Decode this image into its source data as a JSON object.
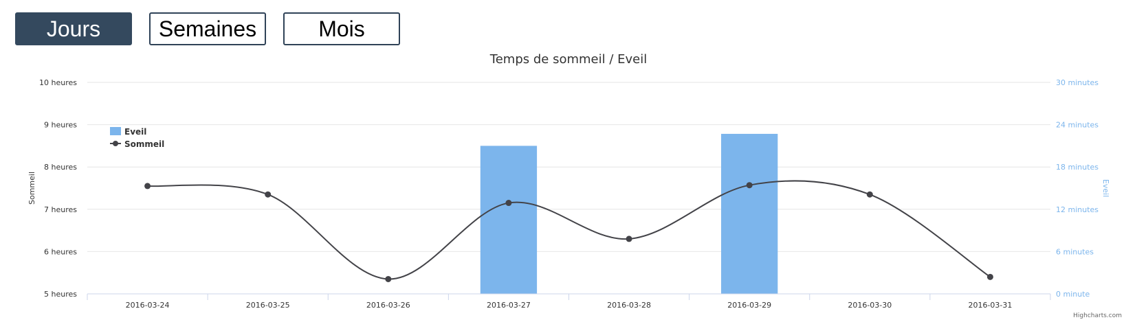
{
  "toolbar": {
    "buttons": [
      {
        "label": "Jours",
        "active": true
      },
      {
        "label": "Semaines",
        "active": false
      },
      {
        "label": "Mois",
        "active": false
      }
    ]
  },
  "chart_data": {
    "type": "bar+line",
    "title": "Temps de sommeil / Eveil",
    "categories": [
      "2016-03-24",
      "2016-03-25",
      "2016-03-26",
      "2016-03-27",
      "2016-03-28",
      "2016-03-29",
      "2016-03-30",
      "2016-03-31"
    ],
    "y_left": {
      "label": "Sommeil",
      "min": 5,
      "max": 10,
      "ticks": [
        5,
        6,
        7,
        8,
        9,
        10
      ],
      "tick_labels": [
        "5 heures",
        "6 heures",
        "7 heures",
        "8 heures",
        "9 heures",
        "10 heures"
      ],
      "color": "#333333"
    },
    "y_right": {
      "label": "Eveil",
      "min": 0,
      "max": 30,
      "ticks": [
        0,
        6,
        12,
        18,
        24,
        30
      ],
      "tick_labels": [
        "0 minute",
        "6 minutes",
        "12 minutes",
        "18 minutes",
        "24 minutes",
        "30 minutes"
      ],
      "color": "#7cb5ec"
    },
    "series": [
      {
        "name": "Eveil",
        "type": "column",
        "axis": "right",
        "color": "#7cb5ec",
        "values": [
          0,
          0,
          0,
          21,
          0,
          22.7,
          0,
          0
        ]
      },
      {
        "name": "Sommeil",
        "type": "spline",
        "axis": "left",
        "color": "#434348",
        "values": [
          7.55,
          7.35,
          5.35,
          7.15,
          6.3,
          7.57,
          7.35,
          5.4
        ]
      }
    ],
    "legend": {
      "placement": "top-left"
    },
    "grid": true,
    "credits": "Highcharts.com"
  }
}
